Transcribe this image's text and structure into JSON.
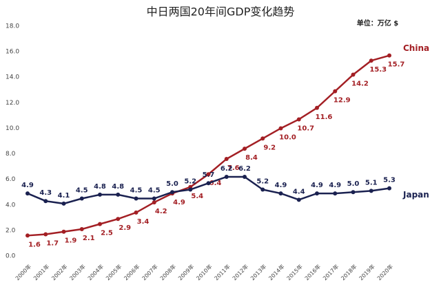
{
  "chart_data": {
    "type": "line",
    "title": "中日两国20年间GDP变化趋势",
    "unit_label": "单位：万亿 $",
    "categories": [
      "2000年",
      "2001年",
      "2002年",
      "2003年",
      "2004年",
      "2005年",
      "2006年",
      "2007年",
      "2008年",
      "2009年",
      "2010年",
      "2011年",
      "2012年",
      "2013年",
      "2014年",
      "2015年",
      "2016年",
      "2017年",
      "2018年",
      "2019年",
      "2020年"
    ],
    "series": [
      {
        "name": "China",
        "color": "#a31f24",
        "values": [
          1.6,
          1.7,
          1.9,
          2.1,
          2.5,
          2.9,
          3.4,
          4.2,
          4.9,
          5.4,
          6.4,
          7.6,
          8.4,
          9.2,
          10.0,
          10.7,
          11.6,
          12.9,
          14.2,
          15.3,
          15.7
        ],
        "value_labels": [
          "1.6",
          "1.7",
          "1.9",
          "2.1",
          "2.5",
          "2.9",
          "3.4",
          "4.2",
          "4.9",
          "5.4",
          "6.4",
          "7.6",
          "8.4",
          "9.2",
          "10.0",
          "10.7",
          "11.6",
          "12.9",
          "14.2",
          "15.3",
          "15.7"
        ]
      },
      {
        "name": "Japan",
        "color": "#1a2150",
        "values": [
          4.9,
          4.3,
          4.1,
          4.5,
          4.8,
          4.8,
          4.5,
          4.5,
          5.0,
          5.2,
          5.7,
          6.2,
          6.2,
          5.2,
          4.9,
          4.4,
          4.9,
          4.9,
          5.0,
          5.1,
          5.3
        ],
        "value_labels": [
          "4.9",
          "4.3",
          "4.1",
          "4.5",
          "4.8",
          "4.8",
          "4.5",
          "4.5",
          "5.0",
          "5.2",
          "5.7",
          "6.2",
          "6.2",
          "5.2",
          "4.9",
          "4.4",
          "4.9",
          "4.9",
          "5.0",
          "5.1",
          "5.3"
        ]
      }
    ],
    "ylim": [
      0,
      18
    ],
    "yticks": [
      {
        "value": 0,
        "label": "0.0"
      },
      {
        "value": 2,
        "label": "2.0"
      },
      {
        "value": 4,
        "label": "4.0"
      },
      {
        "value": 6,
        "label": "6.0"
      },
      {
        "value": 8,
        "label": "8.0"
      },
      {
        "value": 10,
        "label": "10.0"
      },
      {
        "value": 12,
        "label": "12.0"
      },
      {
        "value": 14,
        "label": "14.0"
      },
      {
        "value": 16,
        "label": "16.0"
      },
      {
        "value": 18,
        "label": "18.0"
      }
    ],
    "grid": false
  }
}
